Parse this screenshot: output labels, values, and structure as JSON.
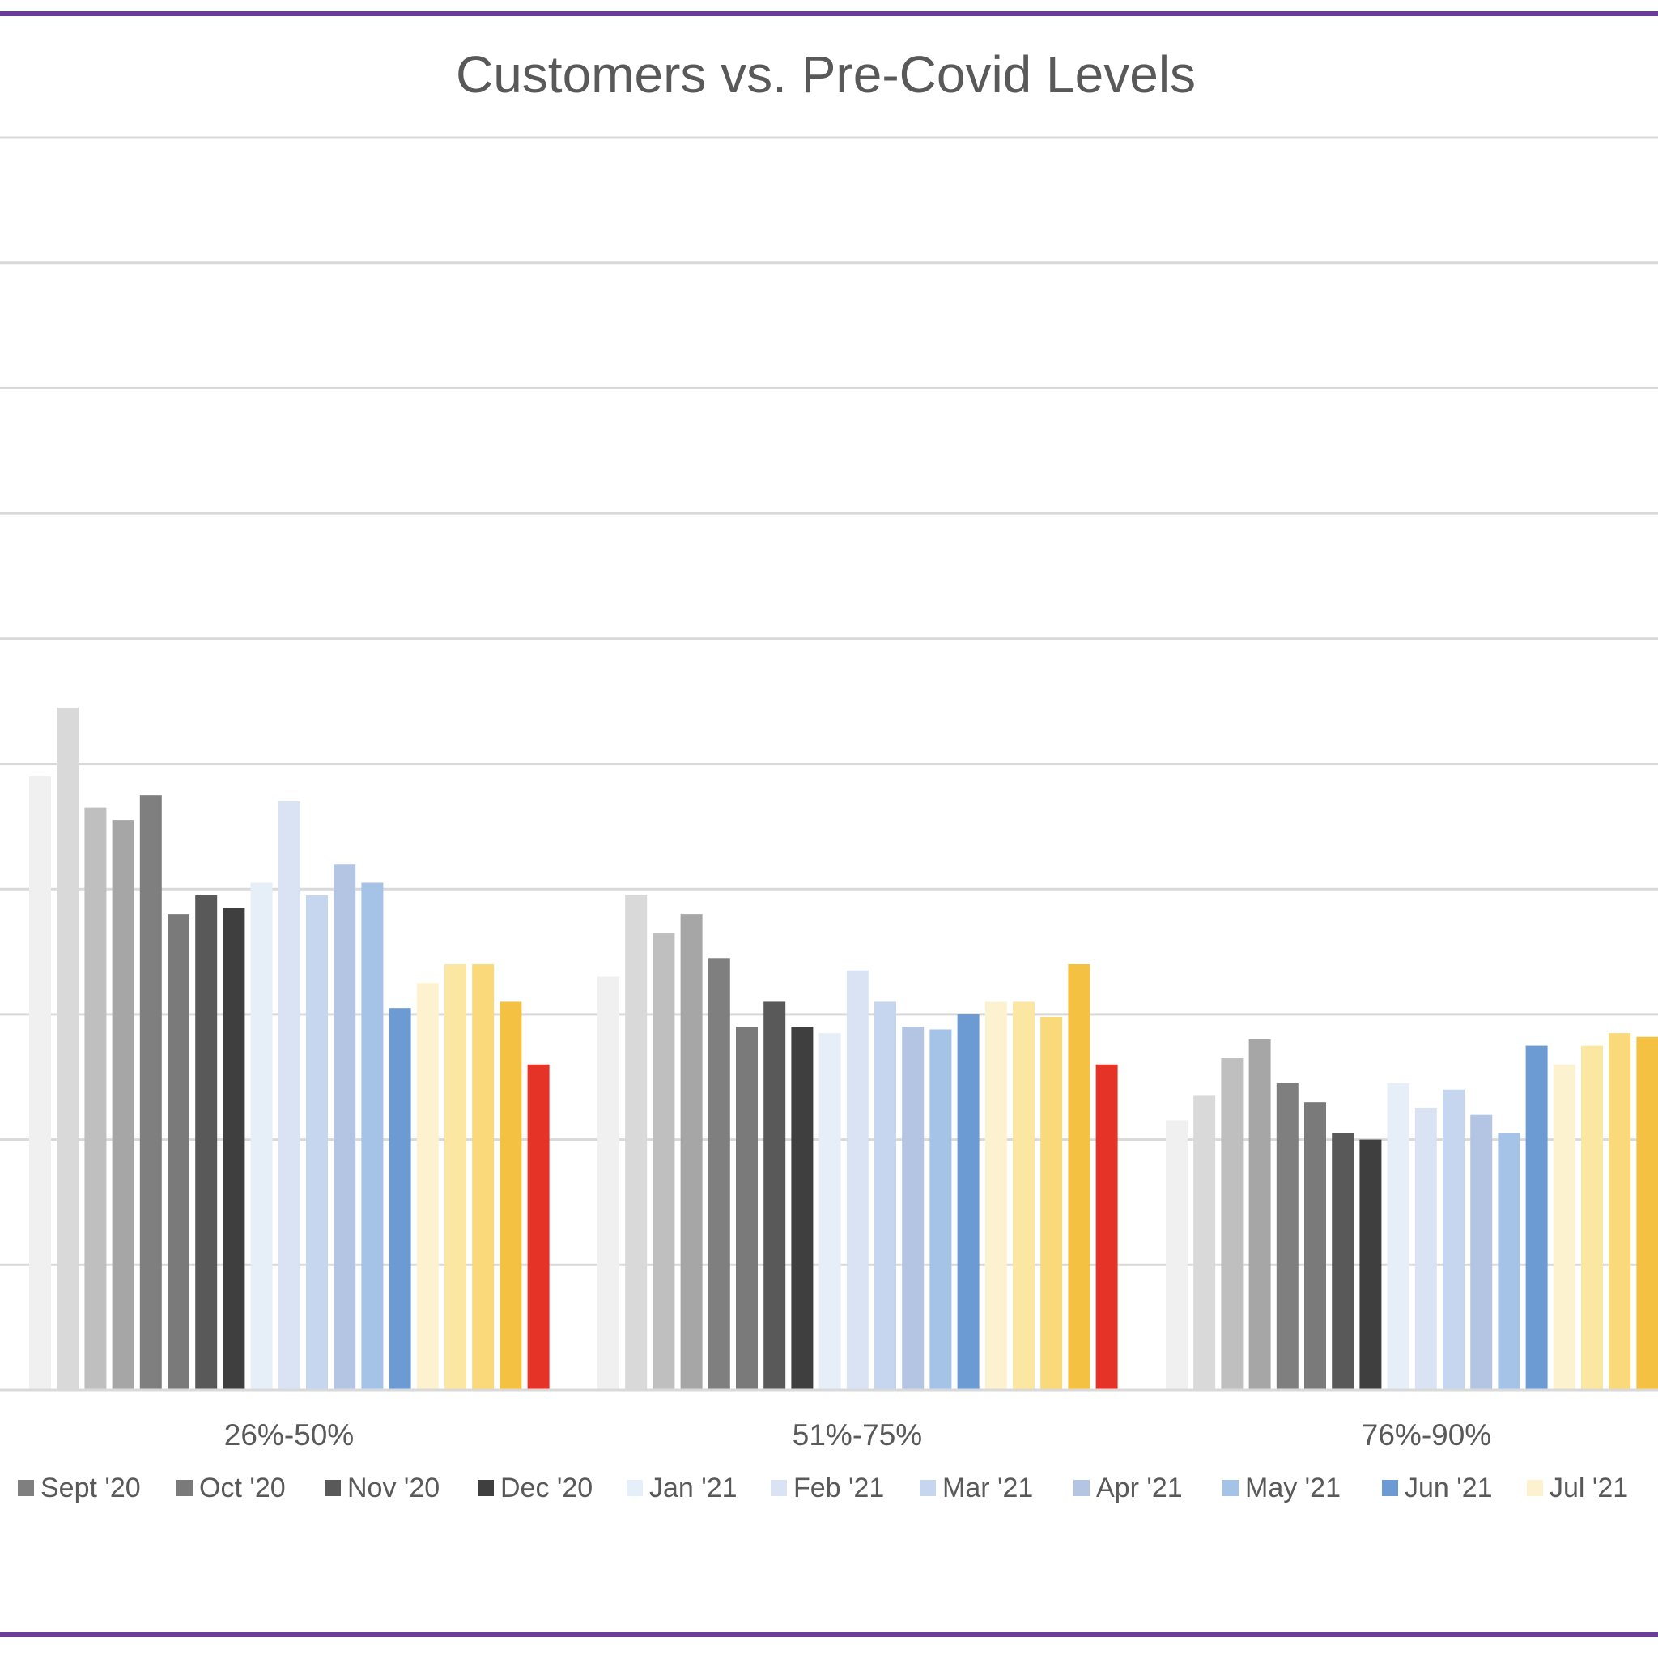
{
  "chart_data": {
    "type": "bar",
    "title": "Customers vs. Pre-Covid Levels",
    "xlabel": "",
    "ylabel": "",
    "ylim": [
      0,
      10
    ],
    "grid": true,
    "legend_position": "bottom",
    "categories": [
      "26%-50%",
      "51%-75%",
      "76%-90%"
    ],
    "series": [
      {
        "name": "",
        "color": "#f0f0f0",
        "values": [
          4.9,
          3.3,
          2.15
        ]
      },
      {
        "name": "",
        "color": "#d9d9d9",
        "values": [
          5.45,
          3.95,
          2.35
        ]
      },
      {
        "name": "",
        "color": "#bfbfbf",
        "values": [
          4.65,
          3.65,
          2.65
        ]
      },
      {
        "name": "",
        "color": "#a6a6a6",
        "values": [
          4.55,
          3.8,
          2.8
        ]
      },
      {
        "name": "Sept '20",
        "color": "#7f7f7f",
        "values": [
          4.75,
          3.45,
          2.45
        ]
      },
      {
        "name": "Oct '20",
        "color": "#7a7a7a",
        "values": [
          3.8,
          2.9,
          2.3
        ]
      },
      {
        "name": "Nov '20",
        "color": "#595959",
        "values": [
          3.95,
          3.1,
          2.05
        ]
      },
      {
        "name": "Dec '20",
        "color": "#3f3f3f",
        "values": [
          3.85,
          2.9,
          2.0
        ]
      },
      {
        "name": "Jan '21",
        "color": "#e6eef8",
        "values": [
          4.05,
          2.85,
          2.45
        ]
      },
      {
        "name": "Feb '21",
        "color": "#dae3f3",
        "values": [
          4.7,
          3.35,
          2.25
        ]
      },
      {
        "name": "Mar '21",
        "color": "#c5d6ee",
        "values": [
          3.95,
          3.1,
          2.4
        ]
      },
      {
        "name": "Apr '21",
        "color": "#b4c5e4",
        "values": [
          4.2,
          2.9,
          2.2
        ]
      },
      {
        "name": "May '21",
        "color": "#a5c3e6",
        "values": [
          4.05,
          2.88,
          2.05
        ]
      },
      {
        "name": "Jun '21",
        "color": "#6b9bd2",
        "values": [
          3.05,
          3.0,
          2.75
        ]
      },
      {
        "name": "Jul '21",
        "color": "#fdf2d0",
        "values": [
          3.25,
          3.1,
          2.6
        ]
      },
      {
        "name": "",
        "color": "#fbe6a2",
        "values": [
          3.4,
          3.1,
          2.75
        ]
      },
      {
        "name": "",
        "color": "#f9d97a",
        "values": [
          3.4,
          2.98,
          2.85
        ]
      },
      {
        "name": "",
        "color": "#f4c142",
        "values": [
          3.1,
          3.4,
          2.82
        ]
      },
      {
        "name": "",
        "color": "#e63327",
        "values": [
          2.6,
          2.6,
          null
        ]
      }
    ]
  },
  "legend": [
    {
      "label": "Sept '20",
      "color": "#7f7f7f"
    },
    {
      "label": "Oct '20",
      "color": "#7a7a7a"
    },
    {
      "label": "Nov '20",
      "color": "#595959"
    },
    {
      "label": "Dec '20",
      "color": "#3f3f3f"
    },
    {
      "label": "Jan '21",
      "color": "#e6eef8"
    },
    {
      "label": "Feb '21",
      "color": "#dae3f3"
    },
    {
      "label": "Mar '21",
      "color": "#c5d6ee"
    },
    {
      "label": "Apr '21",
      "color": "#b4c5e4"
    },
    {
      "label": "May '21",
      "color": "#a5c3e6"
    },
    {
      "label": "Jun '21",
      "color": "#6b9bd2"
    },
    {
      "label": "Jul '21",
      "color": "#fdf2d0"
    }
  ],
  "colors": {
    "frame": "#6a3d9a",
    "gridline": "#d9d9d9",
    "text": "#595959"
  }
}
